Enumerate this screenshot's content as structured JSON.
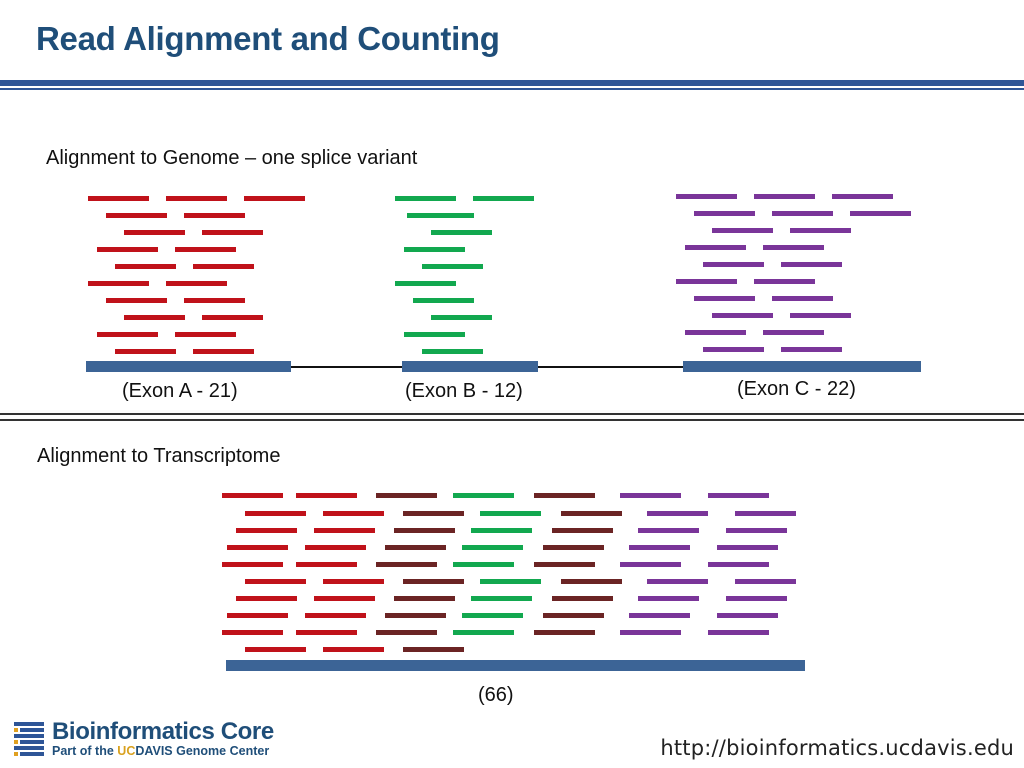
{
  "title": "Read Alignment and Counting",
  "genome_section": {
    "heading": "Alignment to Genome – one splice variant",
    "exons": [
      {
        "label": "(Exon A - 21)",
        "read_count": 21,
        "color": "#c0121a"
      },
      {
        "label": "(Exon B - 12)",
        "read_count": 12,
        "color": "#12a84f"
      },
      {
        "label": "(Exon C - 22)",
        "read_count": 22,
        "color": "#7a3599"
      }
    ]
  },
  "transcriptome_section": {
    "heading": "Alignment to Transcriptome",
    "count_label": "(66)",
    "total_reads": 66,
    "extra_read_color": "#6b2424"
  },
  "footer": {
    "logo_name": "Bioinformatics Core",
    "logo_sub_prefix": "Part of the ",
    "logo_sub_uc": "UC",
    "logo_sub_davis": "DAVIS",
    "logo_sub_suffix": " Genome Center",
    "url": "http://bioinformatics.ucdavis.edu"
  },
  "colors": {
    "title": "#1f4e79",
    "rule": "#2e5597",
    "exon_bar": "#3c6496"
  }
}
